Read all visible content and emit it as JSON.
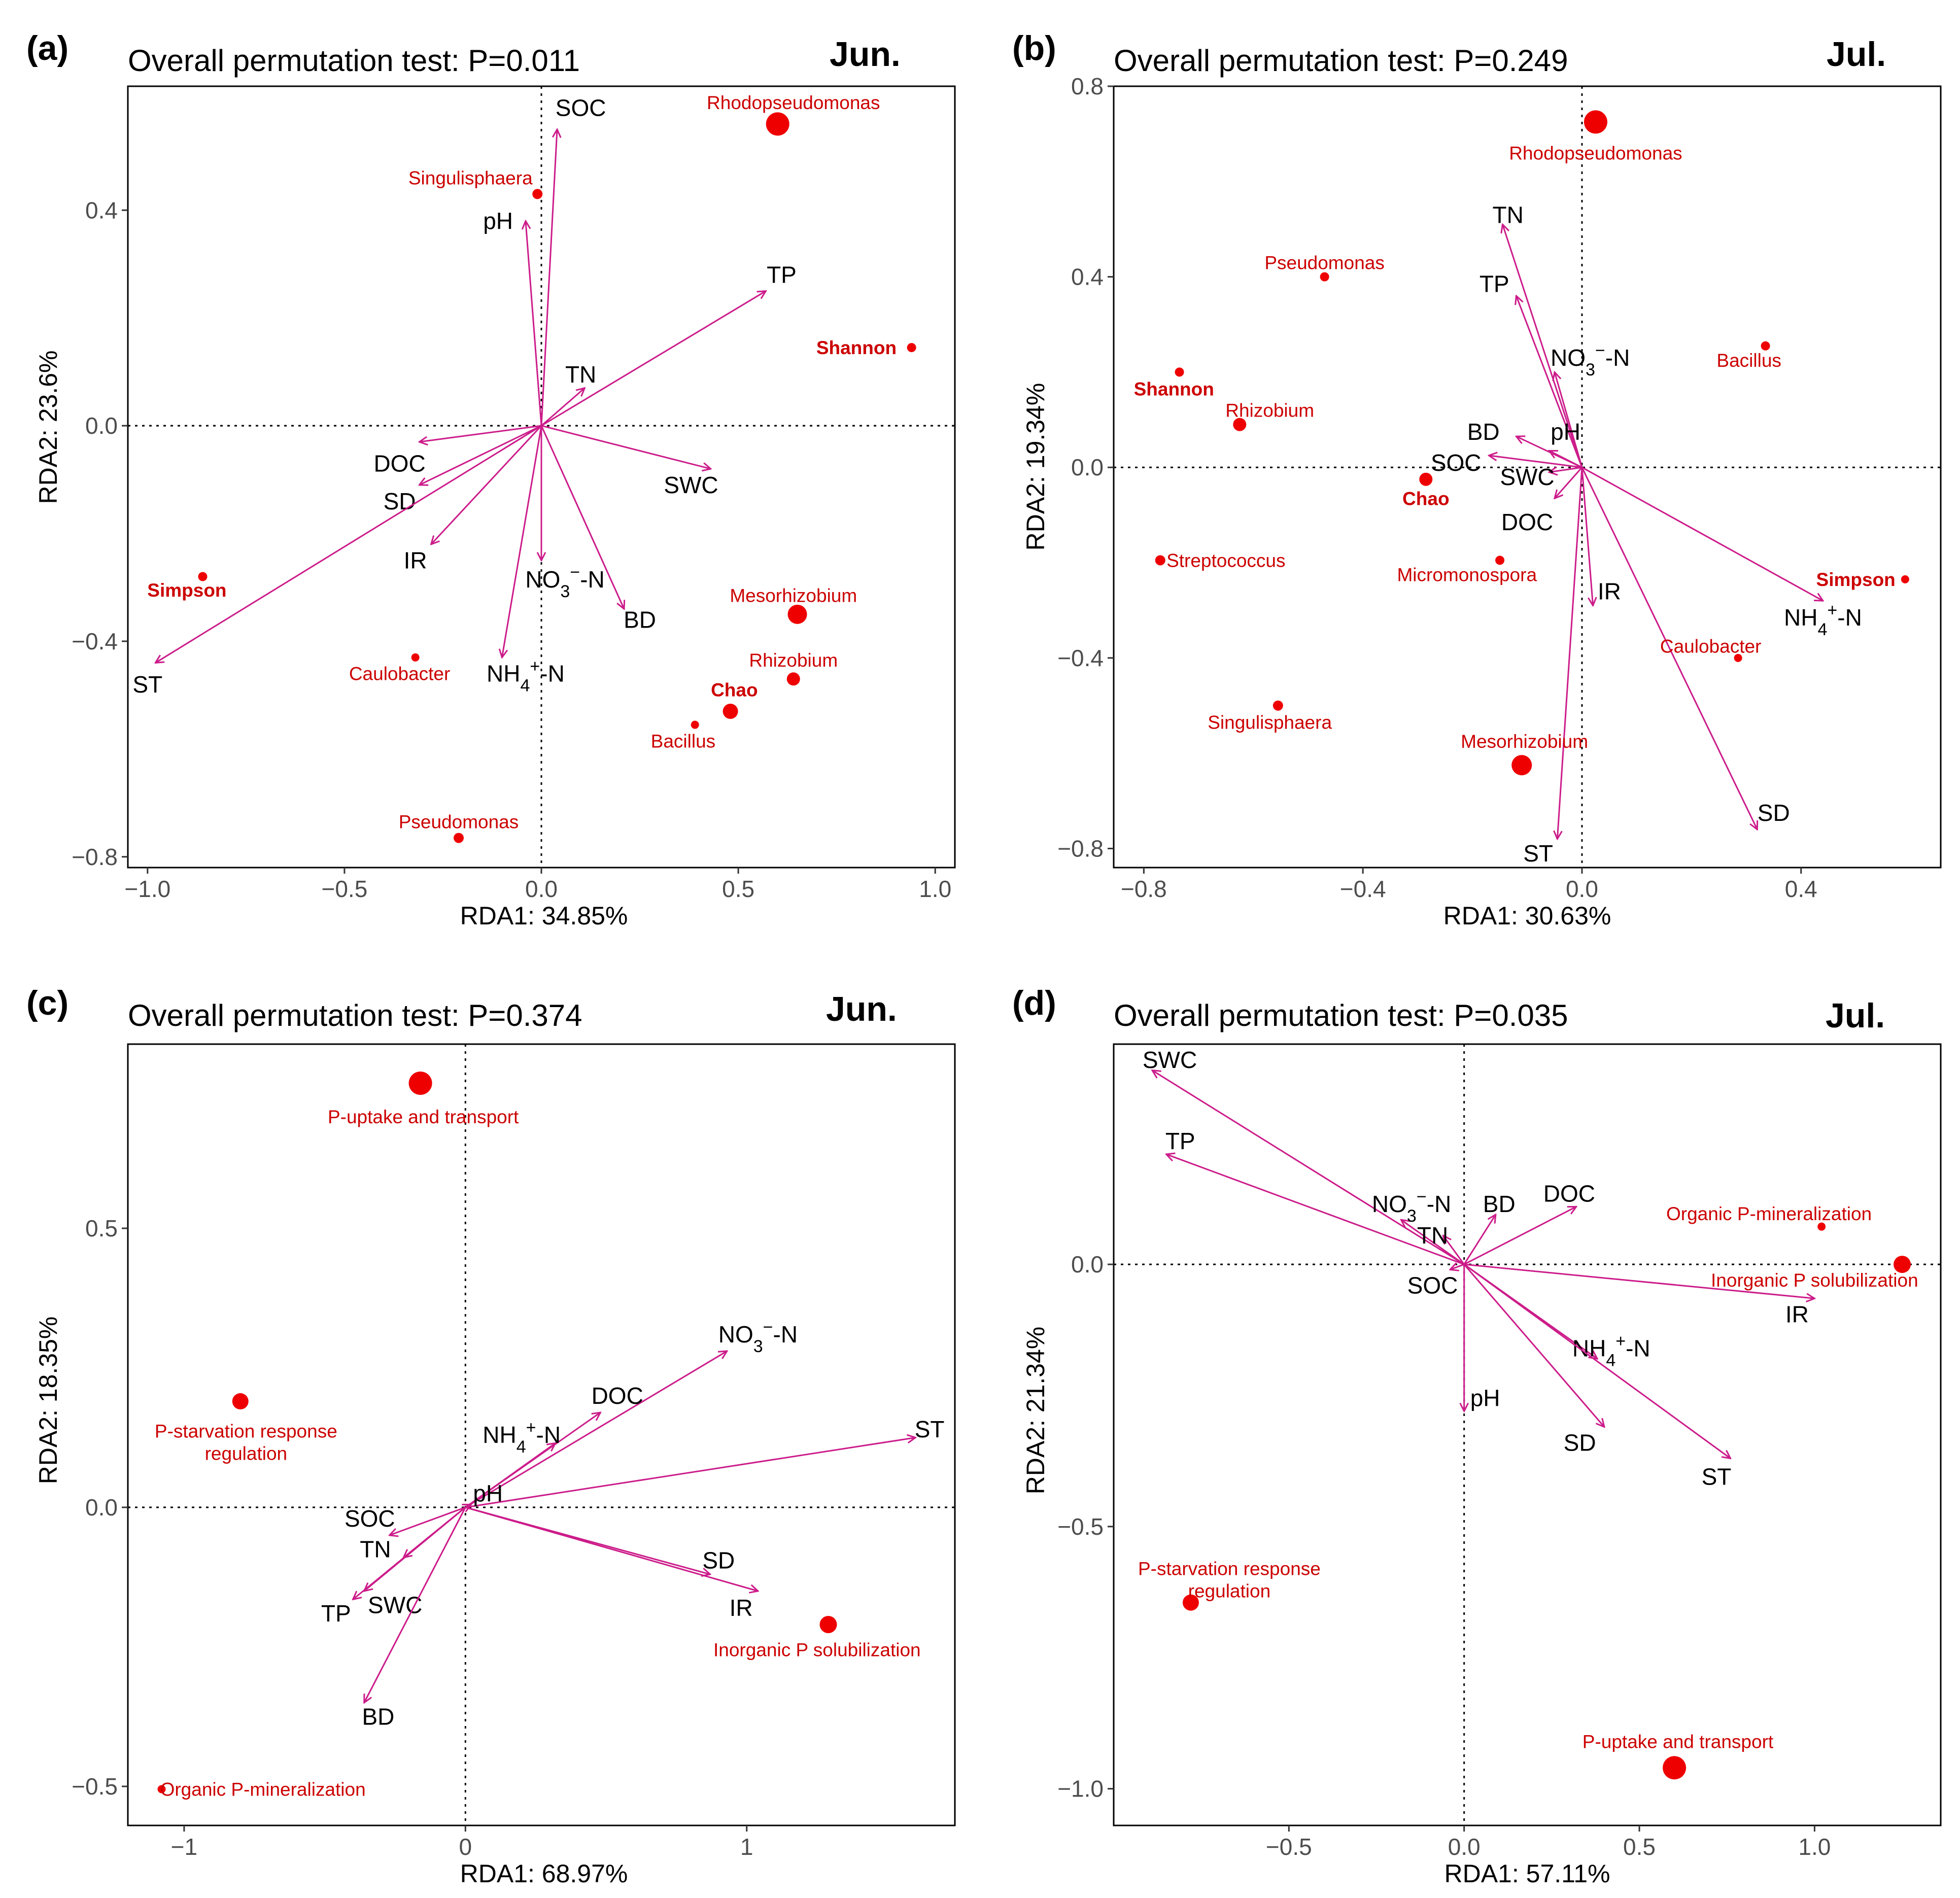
{
  "chart_data": [
    {
      "type": "scatter",
      "panel": "(a)",
      "title": "Overall permutation test: P=0.011",
      "month": "Jun.",
      "xlabel": "RDA1: 34.85%",
      "ylabel": "RDA2: 23.6%",
      "xlim": [
        -1.05,
        1.05
      ],
      "ylim": [
        -0.82,
        0.63
      ],
      "xticks": [
        -1.0,
        -0.5,
        0.0,
        0.5,
        1.0
      ],
      "xtick_labels": [
        "−1.0",
        "−0.5",
        "0.0",
        "0.5",
        "1.0"
      ],
      "yticks": [
        -0.8,
        -0.4,
        0.0,
        0.4
      ],
      "ytick_labels": [
        "−0.8",
        "−0.4",
        "0.0",
        "0.4"
      ],
      "vectors": [
        {
          "label": "SOC",
          "x": 0.04,
          "y": 0.55,
          "lx": 0.1,
          "ly": 0.59
        },
        {
          "label": "pH",
          "x": -0.04,
          "y": 0.38,
          "lx": -0.11,
          "ly": 0.38
        },
        {
          "label": "TP",
          "x": 0.57,
          "y": 0.25,
          "lx": 0.61,
          "ly": 0.28
        },
        {
          "label": "TN",
          "x": 0.11,
          "y": 0.07,
          "lx": 0.1,
          "ly": 0.095
        },
        {
          "label": "DOC",
          "x": -0.31,
          "y": -0.03,
          "lx": -0.36,
          "ly": -0.07
        },
        {
          "label": "SD",
          "x": -0.31,
          "y": -0.11,
          "lx": -0.36,
          "ly": -0.14
        },
        {
          "label": "SWC",
          "x": 0.43,
          "y": -0.08,
          "lx": 0.38,
          "ly": -0.11
        },
        {
          "label": "IR",
          "x": -0.28,
          "y": -0.22,
          "lx": -0.32,
          "ly": -0.25
        },
        {
          "label": "NO3",
          "x": 0.0,
          "y": -0.25,
          "lx": 0.06,
          "ly": -0.285
        },
        {
          "label": "BD",
          "x": 0.21,
          "y": -0.34,
          "lx": 0.25,
          "ly": -0.36
        },
        {
          "label": "NH4",
          "x": -0.1,
          "y": -0.43,
          "lx": -0.04,
          "ly": -0.46
        },
        {
          "label": "ST",
          "x": -0.98,
          "y": -0.44,
          "lx": -1.0,
          "ly": -0.48
        }
      ],
      "points": [
        {
          "name": "Rhodopseudomonas",
          "x": 0.6,
          "y": 0.56,
          "size": 38,
          "lx": 0.64,
          "ly": 0.6,
          "bold": false
        },
        {
          "name": "Singulisphaera",
          "x": -0.01,
          "y": 0.43,
          "size": 12,
          "lx": -0.18,
          "ly": 0.46,
          "bold": false
        },
        {
          "name": "Shannon",
          "x": 0.94,
          "y": 0.145,
          "size": 10,
          "lx": 0.8,
          "ly": 0.145,
          "bold": true
        },
        {
          "name": "Simpson",
          "x": -0.86,
          "y": -0.28,
          "size": 10,
          "lx": -0.9,
          "ly": -0.305,
          "bold": true
        },
        {
          "name": "Mesorhizobium",
          "x": 0.65,
          "y": -0.35,
          "size": 30,
          "lx": 0.64,
          "ly": -0.315,
          "bold": false
        },
        {
          "name": "Rhizobium",
          "x": 0.64,
          "y": -0.47,
          "size": 18,
          "lx": 0.64,
          "ly": -0.435,
          "bold": false
        },
        {
          "name": "Chao",
          "x": 0.48,
          "y": -0.53,
          "size": 22,
          "lx": 0.49,
          "ly": -0.49,
          "bold": true
        },
        {
          "name": "Bacillus",
          "x": 0.39,
          "y": -0.555,
          "size": 8,
          "lx": 0.36,
          "ly": -0.585,
          "bold": false
        },
        {
          "name": "Caulobacter",
          "x": -0.32,
          "y": -0.43,
          "size": 8,
          "lx": -0.36,
          "ly": -0.46,
          "bold": false
        },
        {
          "name": "Pseudomonas",
          "x": -0.21,
          "y": -0.765,
          "size": 12,
          "lx": -0.21,
          "ly": -0.735,
          "bold": false
        }
      ]
    },
    {
      "type": "scatter",
      "panel": "(b)",
      "title": "Overall permutation test: P=0.249",
      "month": "Jul.",
      "xlabel": "RDA1: 30.63%",
      "ylabel": "RDA2: 19.34%",
      "xlim": [
        -0.855,
        0.655
      ],
      "ylim": [
        -0.84,
        0.8
      ],
      "xticks": [
        -0.8,
        -0.4,
        0.0,
        0.4
      ],
      "xtick_labels": [
        "−0.8",
        "−0.4",
        "0.0",
        "0.4"
      ],
      "yticks": [
        -0.8,
        -0.4,
        0.0,
        0.4,
        0.8
      ],
      "ytick_labels": [
        "−0.8",
        "−0.4",
        "0.0",
        "0.4",
        "0.8"
      ],
      "vectors": [
        {
          "label": "TN",
          "x": -0.145,
          "y": 0.51,
          "lx": -0.135,
          "ly": 0.53
        },
        {
          "label": "TP",
          "x": -0.12,
          "y": 0.36,
          "lx": -0.16,
          "ly": 0.385
        },
        {
          "label": "NO3",
          "x": -0.05,
          "y": 0.2,
          "lx": 0.015,
          "ly": 0.23
        },
        {
          "label": "BD",
          "x": -0.12,
          "y": 0.065,
          "lx": -0.18,
          "ly": 0.075
        },
        {
          "label": "pH",
          "x": -0.06,
          "y": 0.035,
          "lx": -0.03,
          "ly": 0.075
        },
        {
          "label": "SOC",
          "x": -0.17,
          "y": 0.025,
          "lx": -0.23,
          "ly": 0.01
        },
        {
          "label": "SWC",
          "x": -0.06,
          "y": -0.01,
          "lx": -0.1,
          "ly": -0.02
        },
        {
          "label": "DOC",
          "x": -0.05,
          "y": -0.065,
          "lx": -0.1,
          "ly": -0.115
        },
        {
          "label": "IR",
          "x": 0.02,
          "y": -0.29,
          "lx": 0.05,
          "ly": -0.26
        },
        {
          "label": "NH4",
          "x": 0.44,
          "y": -0.28,
          "lx": 0.44,
          "ly": -0.315
        },
        {
          "label": "SD",
          "x": 0.32,
          "y": -0.76,
          "lx": 0.35,
          "ly": -0.725
        },
        {
          "label": "ST",
          "x": -0.045,
          "y": -0.78,
          "lx": -0.08,
          "ly": -0.81
        }
      ],
      "points": [
        {
          "name": "Rhodopseudomonas",
          "x": 0.025,
          "y": 0.725,
          "size": 38,
          "lx": 0.025,
          "ly": 0.66,
          "bold": false
        },
        {
          "name": "Pseudomonas",
          "x": -0.47,
          "y": 0.4,
          "size": 10,
          "lx": -0.47,
          "ly": 0.43,
          "bold": false
        },
        {
          "name": "Bacillus",
          "x": 0.335,
          "y": 0.255,
          "size": 10,
          "lx": 0.305,
          "ly": 0.225,
          "bold": false
        },
        {
          "name": "Shannon",
          "x": -0.735,
          "y": 0.2,
          "size": 10,
          "lx": -0.745,
          "ly": 0.165,
          "bold": true
        },
        {
          "name": "Rhizobium",
          "x": -0.625,
          "y": 0.09,
          "size": 18,
          "lx": -0.57,
          "ly": 0.12,
          "bold": false
        },
        {
          "name": "Chao",
          "x": -0.285,
          "y": -0.025,
          "size": 18,
          "lx": -0.285,
          "ly": -0.065,
          "bold": true
        },
        {
          "name": "Streptococcus",
          "x": -0.77,
          "y": -0.195,
          "size": 12,
          "lx": -0.65,
          "ly": -0.195,
          "bold": false
        },
        {
          "name": "Micromonospora",
          "x": -0.15,
          "y": -0.195,
          "size": 10,
          "lx": -0.21,
          "ly": -0.225,
          "bold": false
        },
        {
          "name": "Simpson",
          "x": 0.59,
          "y": -0.235,
          "size": 8,
          "lx": 0.5,
          "ly": -0.235,
          "bold": true
        },
        {
          "name": "Caulobacter",
          "x": 0.285,
          "y": -0.4,
          "size": 8,
          "lx": 0.235,
          "ly": -0.375,
          "bold": false
        },
        {
          "name": "Singulisphaera",
          "x": -0.555,
          "y": -0.5,
          "size": 12,
          "lx": -0.57,
          "ly": -0.535,
          "bold": false
        },
        {
          "name": "Mesorhizobium",
          "x": -0.11,
          "y": -0.625,
          "size": 32,
          "lx": -0.105,
          "ly": -0.575,
          "bold": false
        }
      ]
    },
    {
      "type": "scatter",
      "panel": "(c)",
      "title": "Overall permutation test: P=0.374",
      "month": "Jun.",
      "xlabel": "RDA1: 68.97%",
      "ylabel": "RDA2: 18.35%",
      "xlim": [
        -1.2,
        1.74
      ],
      "ylim": [
        -0.57,
        0.83
      ],
      "xticks": [
        -1,
        0,
        1
      ],
      "xtick_labels": [
        "−1",
        "0",
        "1"
      ],
      "yticks": [
        -0.5,
        0.0,
        0.5
      ],
      "ytick_labels": [
        "−0.5",
        "0.0",
        "0.5"
      ],
      "vectors": [
        {
          "label": "NO3",
          "x": 0.93,
          "y": 0.28,
          "lx": 1.04,
          "ly": 0.31
        },
        {
          "label": "DOC",
          "x": 0.48,
          "y": 0.17,
          "lx": 0.54,
          "ly": 0.2
        },
        {
          "label": "NH4",
          "x": 0.32,
          "y": 0.115,
          "lx": 0.2,
          "ly": 0.13
        },
        {
          "label": "ST",
          "x": 1.6,
          "y": 0.125,
          "lx": 1.65,
          "ly": 0.14
        },
        {
          "label": "pH",
          "x": 0.02,
          "y": 0.005,
          "lx": 0.08,
          "ly": 0.025
        },
        {
          "label": "SOC",
          "x": -0.27,
          "y": -0.05,
          "lx": -0.34,
          "ly": -0.02
        },
        {
          "label": "TN",
          "x": -0.22,
          "y": -0.09,
          "lx": -0.32,
          "ly": -0.075
        },
        {
          "label": "SD",
          "x": 0.87,
          "y": -0.12,
          "lx": 0.9,
          "ly": -0.095
        },
        {
          "label": "SWC",
          "x": -0.36,
          "y": -0.15,
          "lx": -0.25,
          "ly": -0.175
        },
        {
          "label": "IR",
          "x": 1.04,
          "y": -0.15,
          "lx": 0.98,
          "ly": -0.18
        },
        {
          "label": "TP",
          "x": -0.4,
          "y": -0.165,
          "lx": -0.46,
          "ly": -0.19
        },
        {
          "label": "BD",
          "x": -0.36,
          "y": -0.35,
          "lx": -0.31,
          "ly": -0.375
        }
      ],
      "points": [
        {
          "name": "P-uptake and transport",
          "x": -0.16,
          "y": 0.76,
          "size": 38,
          "lx": -0.15,
          "ly": 0.7,
          "bold": false
        },
        {
          "name": "P-starvation response regulation",
          "x": -0.8,
          "y": 0.19,
          "size": 24,
          "lx": -0.78,
          "ly": 0.137,
          "bold": false
        },
        {
          "name": "Inorganic P solubilization",
          "x": 1.29,
          "y": -0.21,
          "size": 26,
          "lx": 1.25,
          "ly": -0.255,
          "bold": false
        },
        {
          "name": "Organic P-mineralization",
          "x": -1.08,
          "y": -0.505,
          "size": 8,
          "lx": -0.72,
          "ly": -0.505,
          "bold": false
        }
      ]
    },
    {
      "type": "scatter",
      "panel": "(d)",
      "title": "Overall permutation test: P=0.035",
      "month": "Jul.",
      "xlabel": "RDA1: 57.11%",
      "ylabel": "RDA2: 21.34%",
      "xlim": [
        -1.0,
        1.36
      ],
      "ylim": [
        -1.07,
        0.42
      ],
      "xticks": [
        -0.5,
        0.0,
        0.5,
        1.0
      ],
      "xtick_labels": [
        "−0.5",
        "0.0",
        "0.5",
        "1.0"
      ],
      "yticks": [
        -1.0,
        -0.5,
        0.0
      ],
      "ytick_labels": [
        "−1.0",
        "−0.5",
        "0.0"
      ],
      "vectors": [
        {
          "label": "SWC",
          "x": -0.89,
          "y": 0.37,
          "lx": -0.84,
          "ly": 0.39
        },
        {
          "label": "TP",
          "x": -0.85,
          "y": 0.21,
          "lx": -0.81,
          "ly": 0.235
        },
        {
          "label": "NO3",
          "x": -0.18,
          "y": 0.085,
          "lx": -0.15,
          "ly": 0.115
        },
        {
          "label": "BD",
          "x": 0.09,
          "y": 0.095,
          "lx": 0.1,
          "ly": 0.115
        },
        {
          "label": "DOC",
          "x": 0.32,
          "y": 0.11,
          "lx": 0.3,
          "ly": 0.135
        },
        {
          "label": "TN",
          "x": -0.06,
          "y": 0.055,
          "lx": -0.09,
          "ly": 0.055
        },
        {
          "label": "SOC",
          "x": -0.04,
          "y": -0.01,
          "lx": -0.09,
          "ly": -0.04
        },
        {
          "label": "IR",
          "x": 1.0,
          "y": -0.065,
          "lx": 0.95,
          "ly": -0.095
        },
        {
          "label": "NH4",
          "x": 0.38,
          "y": -0.18,
          "lx": 0.42,
          "ly": -0.16
        },
        {
          "label": "pH",
          "x": 0.0,
          "y": -0.28,
          "lx": 0.06,
          "ly": -0.255
        },
        {
          "label": "SD",
          "x": 0.4,
          "y": -0.31,
          "lx": 0.33,
          "ly": -0.34
        },
        {
          "label": "ST",
          "x": 0.76,
          "y": -0.37,
          "lx": 0.72,
          "ly": -0.405
        }
      ],
      "points": [
        {
          "name": "Organic P-mineralization",
          "x": 1.02,
          "y": 0.072,
          "size": 8,
          "lx": 0.87,
          "ly": 0.097,
          "bold": false
        },
        {
          "name": "Inorganic P solubilization",
          "x": 1.25,
          "y": 0.0,
          "size": 26,
          "lx": 1.0,
          "ly": -0.03,
          "bold": false
        },
        {
          "name": "P-starvation response regulation",
          "x": -0.78,
          "y": -0.645,
          "size": 24,
          "lx": -0.67,
          "ly": -0.58,
          "bold": false
        },
        {
          "name": "P-uptake and transport",
          "x": 0.6,
          "y": -0.96,
          "size": 38,
          "lx": 0.61,
          "ly": -0.91,
          "bold": false
        }
      ]
    }
  ]
}
